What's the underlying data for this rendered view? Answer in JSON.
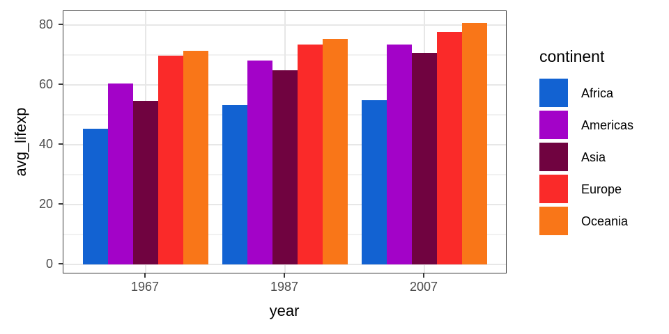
{
  "figure": {
    "type": "grouped-bar-chart",
    "background": "#ffffff"
  },
  "chart_data": {
    "type": "bar",
    "title": "",
    "xlabel": "year",
    "ylabel": "avg_lifexp",
    "categories": [
      "1967",
      "1987",
      "2007"
    ],
    "series": [
      {
        "name": "Africa",
        "color": "#1262d2",
        "values": [
          45.3,
          53.3,
          54.8
        ]
      },
      {
        "name": "Americas",
        "color": "#a303c8",
        "values": [
          60.4,
          68.1,
          73.6
        ]
      },
      {
        "name": "Asia",
        "color": "#700340",
        "values": [
          54.7,
          64.9,
          70.7
        ]
      },
      {
        "name": "Europe",
        "color": "#fa2a29",
        "values": [
          69.7,
          73.6,
          77.6
        ]
      },
      {
        "name": "Oceania",
        "color": "#f97618",
        "values": [
          71.3,
          75.3,
          80.7
        ]
      }
    ],
    "ylim": [
      0,
      84.8
    ],
    "yticks": [
      0,
      20,
      40,
      60,
      80
    ],
    "yminor": [
      10,
      30,
      50,
      70
    ],
    "grid": true,
    "legend_title": "continent",
    "legend_position": "right"
  },
  "theme": {
    "panel_border": "#383838",
    "grid_major": "#e7e7e7",
    "grid_minor": "#f1f1f1",
    "tick_color": "#383838",
    "tick_label_color": "#4d4d4d",
    "title_color": "#000000"
  }
}
